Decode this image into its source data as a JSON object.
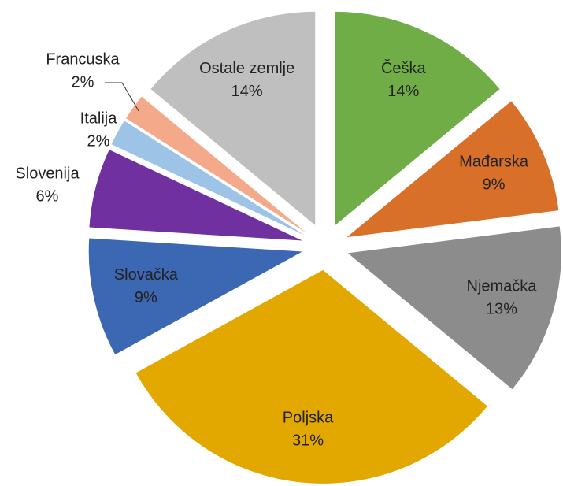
{
  "chart_data": {
    "type": "pie",
    "categories": [
      "Češka",
      "Mađarska",
      "Njemačka",
      "Poljska",
      "Slovačka",
      "Slovenija",
      "Italija",
      "Francuska",
      "Ostale zemlje"
    ],
    "values": [
      14,
      9,
      13,
      31,
      9,
      6,
      2,
      2,
      14
    ],
    "value_labels": [
      "14%",
      "9%",
      "13%",
      "31%",
      "9%",
      "6%",
      "2%",
      "2%",
      "14%"
    ],
    "colors": [
      "#70ad47",
      "#d8702a",
      "#8c8c8c",
      "#e2a800",
      "#3c67b2",
      "#7030a0",
      "#9dc3e6",
      "#f4a98a",
      "#bfbfbf"
    ]
  }
}
